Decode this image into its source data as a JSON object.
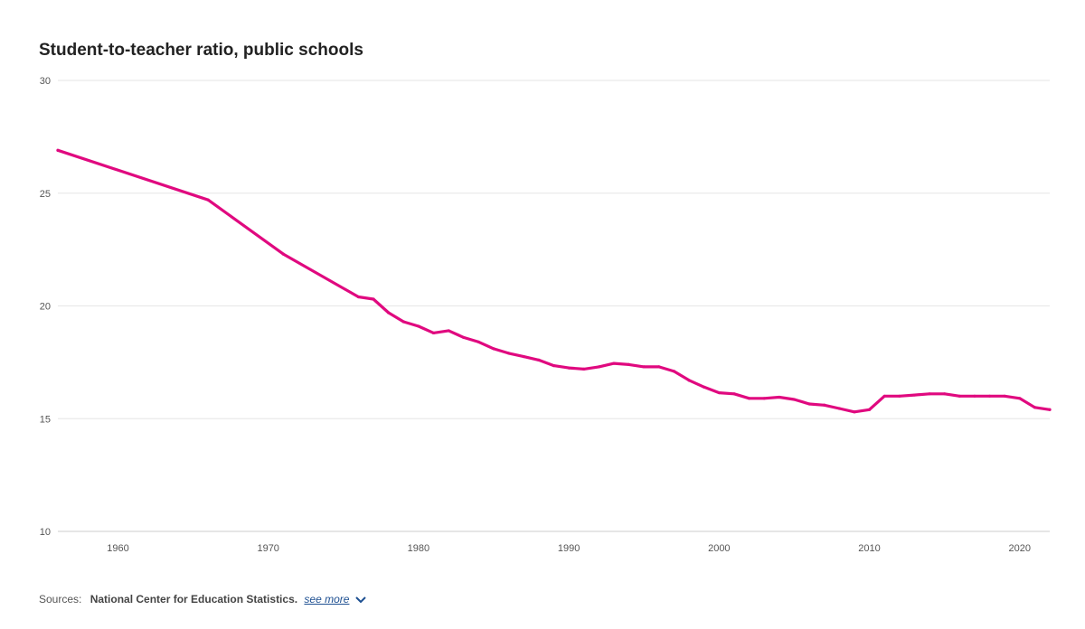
{
  "chart_data": {
    "type": "line",
    "title": "Student-to-teacher ratio, public schools",
    "xlim": [
      1956,
      2022
    ],
    "ylim": [
      10,
      30
    ],
    "y_ticks": [
      10,
      15,
      20,
      25,
      30
    ],
    "x_ticks": [
      1960,
      1970,
      1980,
      1990,
      2000,
      2010,
      2020
    ],
    "grid": "horizontal",
    "series": [
      {
        "color": "#e0097f",
        "x": [
          1956,
          1966,
          1971,
          1976,
          1977,
          1978,
          1979,
          1980,
          1981,
          1982,
          1983,
          1984,
          1985,
          1986,
          1987,
          1988,
          1989,
          1990,
          1991,
          1992,
          1993,
          1994,
          1995,
          1996,
          1997,
          1998,
          1999,
          2000,
          2001,
          2002,
          2003,
          2004,
          2005,
          2006,
          2007,
          2008,
          2009,
          2010,
          2011,
          2012,
          2013,
          2014,
          2015,
          2016,
          2017,
          2018,
          2019,
          2020,
          2021,
          2022
        ],
        "y": [
          26.9,
          24.7,
          22.3,
          20.4,
          20.3,
          19.7,
          19.3,
          19.1,
          18.8,
          18.9,
          18.6,
          18.4,
          18.1,
          17.9,
          17.75,
          17.6,
          17.35,
          17.25,
          17.2,
          17.3,
          17.45,
          17.4,
          17.3,
          17.3,
          17.1,
          16.7,
          16.4,
          16.15,
          16.1,
          15.9,
          15.9,
          15.95,
          15.85,
          15.65,
          15.6,
          15.45,
          15.3,
          15.4,
          16.0,
          16.0,
          16.05,
          16.1,
          16.1,
          16.0,
          16.0,
          16.0,
          16.0,
          15.9,
          15.5,
          15.4
        ]
      }
    ]
  },
  "sources": {
    "label": "Sources:",
    "org": "National Center for Education Statistics.",
    "see_more": "see more",
    "chevron_icon": "chevron-down-icon"
  }
}
